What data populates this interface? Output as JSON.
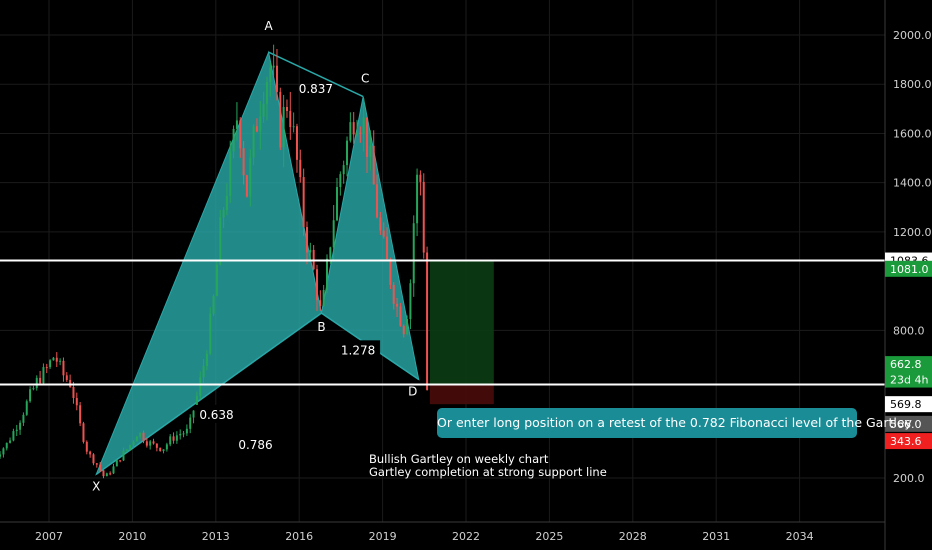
{
  "chart_data": {
    "type": "candlestick",
    "title": "",
    "xlabel": "",
    "ylabel": "",
    "x_tick_labels": [
      "2007",
      "2010",
      "2013",
      "2016",
      "2019",
      "2022",
      "2025",
      "2028",
      "2031",
      "2034"
    ],
    "y_tick_labels": [
      "2000.0",
      "1800.0",
      "1600.0",
      "1400.0",
      "1200.0",
      "800.0",
      "200.0"
    ],
    "ylim": [
      0,
      2100
    ],
    "grid": true,
    "price_series": {
      "x": [
        2005.0,
        2005.5,
        2006.0,
        2006.3,
        2006.6,
        2006.9,
        2007.2,
        2007.5,
        2007.8,
        2008.1,
        2008.4,
        2008.7,
        2009.0,
        2009.3,
        2009.6,
        2009.9,
        2010.2,
        2010.5,
        2010.8,
        2011.1,
        2011.4,
        2011.7,
        2012.0,
        2012.3,
        2012.6,
        2012.9,
        2013.2,
        2013.5,
        2013.8,
        2014.1,
        2014.4,
        2014.7,
        2015.0,
        2015.3,
        2015.6,
        2015.9,
        2016.2,
        2016.5,
        2016.8,
        2017.1,
        2017.4,
        2017.7,
        2018.0,
        2018.3,
        2018.6,
        2018.9,
        2019.2,
        2019.5,
        2019.8,
        2020.0,
        2020.2,
        2020.35,
        2020.5,
        2020.6
      ],
      "y": [
        280,
        340,
        450,
        530,
        600,
        640,
        700,
        620,
        580,
        420,
        300,
        260,
        200,
        240,
        290,
        330,
        390,
        350,
        330,
        320,
        360,
        380,
        390,
        520,
        680,
        900,
        1250,
        1450,
        1700,
        1350,
        1600,
        1800,
        1880,
        1600,
        1750,
        1500,
        1200,
        1050,
        850,
        1150,
        1400,
        1550,
        1700,
        1650,
        1450,
        1200,
        1050,
        900,
        800,
        1000,
        1400,
        1430,
        1100,
        560
      ]
    },
    "harmonic_pattern": {
      "name": "Bullish Gartley",
      "points": [
        {
          "label": "X",
          "date": 2008.7,
          "price": 215
        },
        {
          "label": "A",
          "date": 2014.9,
          "price": 1930
        },
        {
          "label": "B",
          "date": 2016.8,
          "price": 870
        },
        {
          "label": "C",
          "date": 2018.3,
          "price": 1750
        },
        {
          "label": "D",
          "date": 2020.3,
          "price": 600
        }
      ],
      "ratios": [
        {
          "label": "0.837"
        },
        {
          "label": "1.278"
        },
        {
          "label": "0.638"
        },
        {
          "label": "0.786"
        }
      ]
    },
    "horizontal_lines": [
      1083.6,
      580
    ],
    "position": {
      "start_date": 2020.7,
      "end_date": 2023.0,
      "target": 1081.0,
      "entry": 580,
      "stop": 500
    },
    "price_labels": [
      {
        "text": "1083.6",
        "price": 1083.6,
        "bg": "#ffffff",
        "fg": "#000000"
      },
      {
        "text": "1081.0",
        "price": 1050,
        "bg": "#1a9a3a",
        "fg": "#ffffff"
      },
      {
        "text": "662.8",
        "price": 662.8,
        "bg": "#1a9a3a",
        "fg": "#ffffff"
      },
      {
        "text": "23d 4h",
        "price": 600,
        "bg": "#1a9a3a",
        "fg": "#ffffff"
      },
      {
        "text": "569.8",
        "price": 500,
        "bg": "#ffffff",
        "fg": "#000000"
      },
      {
        "text": "566.0",
        "price": 420,
        "bg": "#555555",
        "fg": "#ffffff"
      },
      {
        "text": "343.6",
        "price": 350,
        "bg": "#f02020",
        "fg": "#ffffff"
      }
    ],
    "colors": {
      "background": "#000000",
      "pattern_fill": "#2aa7a7",
      "up_candle": "#26a65b",
      "down_candle": "#ef5350",
      "line": "#ffffff",
      "profit_zone": "#0b3d14",
      "loss_zone": "#4a0b0b"
    }
  },
  "annotations": {
    "callout": "Or enter long position on a retest of the 0.782 Fibonacci level of the Gartley",
    "note_line1": "Bullish Gartley on weekly chart",
    "note_line2": "Gartley completion at strong support line"
  }
}
